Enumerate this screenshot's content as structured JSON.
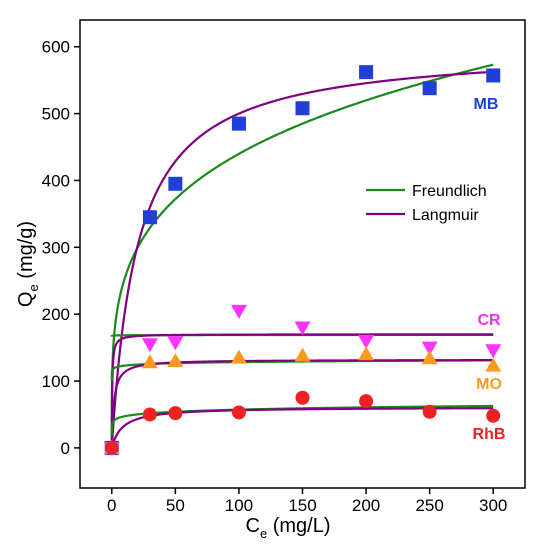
{
  "chart_data": {
    "type": "scatter",
    "title": "",
    "xlabel": {
      "main": "C",
      "sub": "e",
      "unit": " (mg/L)"
    },
    "ylabel": {
      "main": "Q",
      "sub": "e",
      "unit": " (mg/g)"
    },
    "xlim": [
      -25,
      325
    ],
    "ylim": [
      -60,
      640
    ],
    "xticks": [
      0,
      50,
      100,
      150,
      200,
      250,
      300
    ],
    "yticks": [
      0,
      100,
      200,
      300,
      400,
      500,
      600
    ],
    "grid": false,
    "legend": {
      "position": "center-right",
      "entries": [
        {
          "label": "Freundlich",
          "color": "#1a8a1a"
        },
        {
          "label": "Langmuir",
          "color": "#800080"
        }
      ]
    },
    "series": [
      {
        "name": "MB",
        "marker": "square",
        "color": "#1f3fd6",
        "label_color": "#1f3fd6",
        "x": [
          0,
          30,
          50,
          100,
          150,
          200,
          250,
          300
        ],
        "y": [
          0,
          345,
          395,
          485,
          508,
          562,
          538,
          557
        ],
        "freundlich": {
          "kf": 145,
          "n": 4.15
        },
        "langmuir": {
          "qm": 600,
          "kl": 0.05
        }
      },
      {
        "name": "CR",
        "marker": "triangle-down",
        "color": "#ff33ff",
        "label_color": "#ee33ee",
        "x": [
          0,
          30,
          50,
          100,
          150,
          200,
          250,
          300
        ],
        "y": [
          0,
          155,
          158,
          205,
          180,
          160,
          150,
          146
        ],
        "freundlich": {
          "kf": 168,
          "n": 1000
        },
        "langmuir": {
          "qm": 170,
          "kl": 3.0
        }
      },
      {
        "name": "MO",
        "marker": "triangle-up",
        "color": "#ff9922",
        "label_color": "#ff9922",
        "x": [
          0,
          30,
          50,
          100,
          150,
          200,
          250,
          300
        ],
        "y": [
          0,
          128,
          130,
          135,
          138,
          140,
          134,
          123
        ],
        "freundlich": {
          "kf": 118,
          "n": 55
        },
        "langmuir": {
          "qm": 132,
          "kl": 0.6
        }
      },
      {
        "name": "RhB",
        "marker": "circle",
        "color": "#ee2222",
        "label_color": "#ee2222",
        "x": [
          0,
          30,
          50,
          100,
          150,
          200,
          250,
          300
        ],
        "y": [
          0,
          50,
          52,
          53,
          75,
          70,
          54,
          48
        ],
        "freundlich": {
          "kf": 39,
          "n": 12
        },
        "langmuir": {
          "qm": 61,
          "kl": 0.12
        }
      }
    ]
  }
}
